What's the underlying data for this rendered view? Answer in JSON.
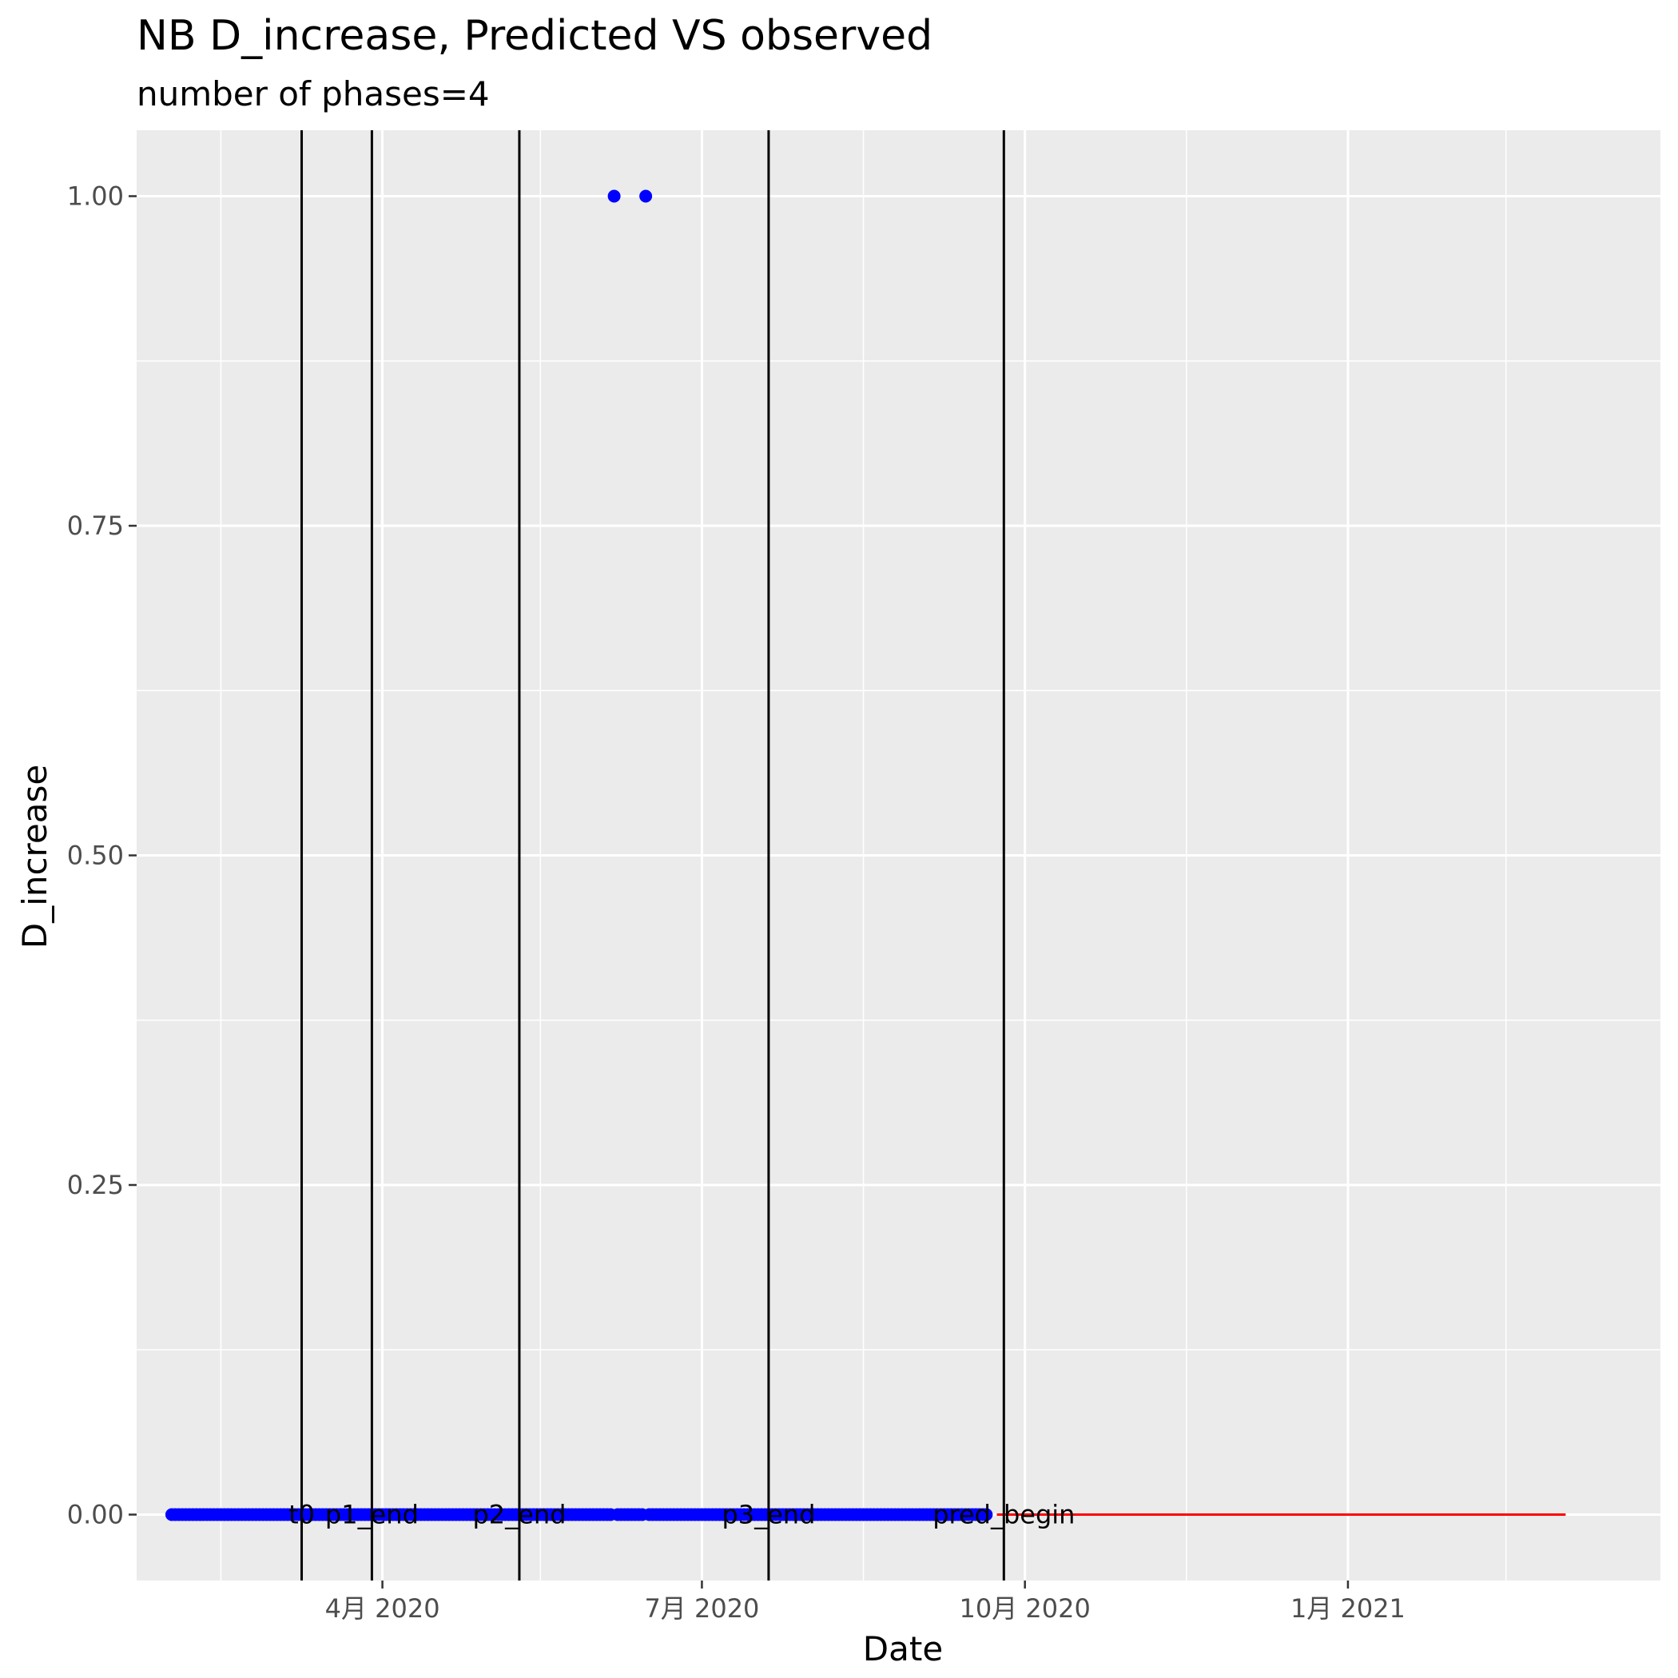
{
  "chart_data": {
    "type": "scatter",
    "title": "NB D_increase, Predicted VS observed",
    "subtitle": "number of phases=4",
    "xlabel": "Date",
    "ylabel": "D_increase",
    "xlim": [
      "2020-01-22",
      "2021-03-31"
    ],
    "ylim": [
      -0.05,
      1.05
    ],
    "x_ticks": [
      {
        "date": "2020-04-01",
        "label": "4月 2020"
      },
      {
        "date": "2020-07-01",
        "label": "7月 2020"
      },
      {
        "date": "2020-10-01",
        "label": "10月 2020"
      },
      {
        "date": "2021-01-01",
        "label": "1月 2021"
      }
    ],
    "x_minor_ticks": [
      "2020-02-15",
      "2020-05-16",
      "2020-08-16",
      "2020-11-16",
      "2021-02-15"
    ],
    "y_ticks": [
      {
        "value": 0,
        "label": "0.00"
      },
      {
        "value": 0.25,
        "label": "0.25"
      },
      {
        "value": 0.5,
        "label": "0.50"
      },
      {
        "value": 0.75,
        "label": "0.75"
      },
      {
        "value": 1,
        "label": "1.00"
      }
    ],
    "y_minor_ticks": [
      0.125,
      0.375,
      0.625,
      0.875
    ],
    "grid": true,
    "legend": "none",
    "observed": {
      "color": "#0000ff",
      "start": "2020-02-01",
      "end": "2020-09-20",
      "baseline_value": 0,
      "spikes": [
        {
          "date": "2020-06-06",
          "value": 1
        },
        {
          "date": "2020-06-15",
          "value": 1
        }
      ]
    },
    "predicted": {
      "color": "#ff0000",
      "start": "2020-09-23",
      "end": "2021-03-04",
      "value": 0
    },
    "phase_lines": [
      {
        "date": "2020-03-09",
        "label": "t0"
      },
      {
        "date": "2020-03-29",
        "label": "p1_end"
      },
      {
        "date": "2020-05-10",
        "label": "p2_end"
      },
      {
        "date": "2020-07-20",
        "label": "p3_end"
      },
      {
        "date": "2020-09-25",
        "label": "pred_begin"
      }
    ],
    "colors": {
      "panel": "#ebebeb",
      "grid": "#ffffff",
      "phase_line": "#000000",
      "axis_tick": "#333333"
    }
  }
}
